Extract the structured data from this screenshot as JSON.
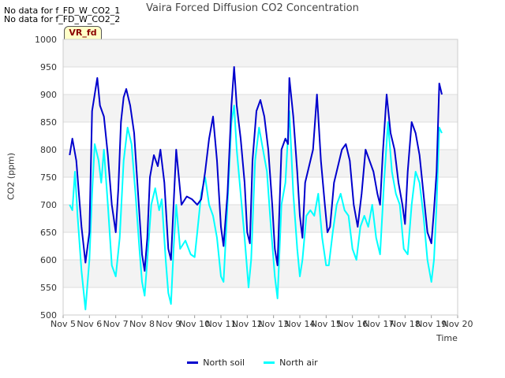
{
  "notes": [
    "No data for f_FD_W_CO2_1",
    "No data for f_FD_W_CO2_2"
  ],
  "badge": "VR_fd",
  "chart_data": {
    "type": "line",
    "title": "Vaira Forced Diffusion CO2 Concentration",
    "xlabel": "Time",
    "ylabel": "CO2 (ppm)",
    "ylim": [
      500,
      1000
    ],
    "yticks": [
      500,
      550,
      600,
      650,
      700,
      750,
      800,
      850,
      900,
      950,
      1000
    ],
    "xlim": [
      5,
      20
    ],
    "xticks": [
      5,
      6,
      7,
      8,
      9,
      10,
      11,
      12,
      13,
      14,
      15,
      16,
      17,
      18,
      19,
      20
    ],
    "xtick_labels": [
      "Nov 5",
      "Nov 6",
      "Nov 7",
      "Nov 8",
      "Nov 9",
      "Nov 10",
      "Nov 11",
      "Nov 12",
      "Nov 13",
      "Nov 14",
      "Nov 15",
      "Nov 16",
      "Nov 17",
      "Nov 18",
      "Nov 19",
      "Nov 20"
    ],
    "grid": true,
    "legend_position": "bottom-center",
    "series": [
      {
        "name": "North soil",
        "color": "#0000cd",
        "points": [
          [
            5.25,
            790
          ],
          [
            5.35,
            820
          ],
          [
            5.5,
            780
          ],
          [
            5.7,
            660
          ],
          [
            5.85,
            595
          ],
          [
            6.0,
            650
          ],
          [
            6.1,
            870
          ],
          [
            6.2,
            900
          ],
          [
            6.3,
            930
          ],
          [
            6.4,
            880
          ],
          [
            6.55,
            860
          ],
          [
            6.7,
            790
          ],
          [
            6.85,
            700
          ],
          [
            7.0,
            650
          ],
          [
            7.1,
            730
          ],
          [
            7.2,
            850
          ],
          [
            7.3,
            895
          ],
          [
            7.4,
            910
          ],
          [
            7.55,
            880
          ],
          [
            7.7,
            830
          ],
          [
            7.85,
            720
          ],
          [
            8.0,
            610
          ],
          [
            8.1,
            580
          ],
          [
            8.2,
            640
          ],
          [
            8.3,
            750
          ],
          [
            8.45,
            790
          ],
          [
            8.6,
            770
          ],
          [
            8.7,
            800
          ],
          [
            8.85,
            740
          ],
          [
            9.0,
            620
          ],
          [
            9.1,
            600
          ],
          [
            9.2,
            700
          ],
          [
            9.3,
            800
          ],
          [
            9.5,
            700
          ],
          [
            9.7,
            715
          ],
          [
            9.9,
            710
          ],
          [
            10.1,
            700
          ],
          [
            10.25,
            710
          ],
          [
            10.4,
            760
          ],
          [
            10.55,
            820
          ],
          [
            10.7,
            860
          ],
          [
            10.85,
            780
          ],
          [
            11.0,
            660
          ],
          [
            11.1,
            625
          ],
          [
            11.25,
            720
          ],
          [
            11.4,
            880
          ],
          [
            11.5,
            950
          ],
          [
            11.6,
            880
          ],
          [
            11.75,
            820
          ],
          [
            11.9,
            740
          ],
          [
            12.0,
            650
          ],
          [
            12.1,
            630
          ],
          [
            12.2,
            780
          ],
          [
            12.35,
            870
          ],
          [
            12.5,
            890
          ],
          [
            12.65,
            860
          ],
          [
            12.8,
            800
          ],
          [
            12.95,
            700
          ],
          [
            13.05,
            620
          ],
          [
            13.15,
            590
          ],
          [
            13.3,
            800
          ],
          [
            13.45,
            820
          ],
          [
            13.55,
            810
          ],
          [
            13.6,
            930
          ],
          [
            13.75,
            860
          ],
          [
            13.9,
            760
          ],
          [
            14.0,
            680
          ],
          [
            14.1,
            640
          ],
          [
            14.2,
            740
          ],
          [
            14.35,
            770
          ],
          [
            14.5,
            800
          ],
          [
            14.65,
            900
          ],
          [
            14.8,
            780
          ],
          [
            14.95,
            700
          ],
          [
            15.05,
            650
          ],
          [
            15.15,
            660
          ],
          [
            15.3,
            740
          ],
          [
            15.45,
            770
          ],
          [
            15.6,
            800
          ],
          [
            15.75,
            810
          ],
          [
            15.9,
            780
          ],
          [
            16.05,
            700
          ],
          [
            16.2,
            660
          ],
          [
            16.35,
            720
          ],
          [
            16.5,
            800
          ],
          [
            16.65,
            780
          ],
          [
            16.8,
            760
          ],
          [
            16.95,
            720
          ],
          [
            17.05,
            700
          ],
          [
            17.15,
            790
          ],
          [
            17.3,
            900
          ],
          [
            17.45,
            830
          ],
          [
            17.6,
            800
          ],
          [
            17.75,
            740
          ],
          [
            17.9,
            700
          ],
          [
            18.0,
            665
          ],
          [
            18.1,
            760
          ],
          [
            18.25,
            850
          ],
          [
            18.4,
            830
          ],
          [
            18.55,
            790
          ],
          [
            18.7,
            720
          ],
          [
            18.85,
            650
          ],
          [
            19.0,
            630
          ],
          [
            19.1,
            690
          ],
          [
            19.2,
            760
          ],
          [
            19.3,
            920
          ],
          [
            19.4,
            900
          ]
        ]
      },
      {
        "name": "North air",
        "color": "#00ffff",
        "points": [
          [
            5.25,
            700
          ],
          [
            5.35,
            690
          ],
          [
            5.45,
            760
          ],
          [
            5.55,
            680
          ],
          [
            5.7,
            580
          ],
          [
            5.85,
            510
          ],
          [
            6.0,
            600
          ],
          [
            6.1,
            720
          ],
          [
            6.2,
            810
          ],
          [
            6.35,
            780
          ],
          [
            6.45,
            740
          ],
          [
            6.55,
            800
          ],
          [
            6.7,
            700
          ],
          [
            6.85,
            590
          ],
          [
            7.0,
            570
          ],
          [
            7.15,
            640
          ],
          [
            7.3,
            780
          ],
          [
            7.45,
            840
          ],
          [
            7.6,
            810
          ],
          [
            7.75,
            720
          ],
          [
            7.9,
            620
          ],
          [
            8.0,
            560
          ],
          [
            8.1,
            535
          ],
          [
            8.2,
            600
          ],
          [
            8.35,
            700
          ],
          [
            8.5,
            730
          ],
          [
            8.65,
            690
          ],
          [
            8.75,
            710
          ],
          [
            8.9,
            600
          ],
          [
            9.0,
            540
          ],
          [
            9.1,
            520
          ],
          [
            9.2,
            620
          ],
          [
            9.3,
            700
          ],
          [
            9.45,
            620
          ],
          [
            9.65,
            635
          ],
          [
            9.85,
            610
          ],
          [
            10.0,
            605
          ],
          [
            10.1,
            650
          ],
          [
            10.25,
            720
          ],
          [
            10.4,
            750
          ],
          [
            10.55,
            700
          ],
          [
            10.7,
            680
          ],
          [
            10.85,
            640
          ],
          [
            11.0,
            570
          ],
          [
            11.1,
            560
          ],
          [
            11.25,
            700
          ],
          [
            11.4,
            850
          ],
          [
            11.5,
            880
          ],
          [
            11.6,
            800
          ],
          [
            11.75,
            720
          ],
          [
            11.9,
            640
          ],
          [
            12.05,
            550
          ],
          [
            12.15,
            600
          ],
          [
            12.3,
            780
          ],
          [
            12.45,
            840
          ],
          [
            12.6,
            800
          ],
          [
            12.75,
            760
          ],
          [
            12.9,
            660
          ],
          [
            13.05,
            570
          ],
          [
            13.15,
            530
          ],
          [
            13.3,
            700
          ],
          [
            13.45,
            740
          ],
          [
            13.6,
            870
          ],
          [
            13.75,
            720
          ],
          [
            13.9,
            620
          ],
          [
            14.0,
            570
          ],
          [
            14.1,
            600
          ],
          [
            14.25,
            680
          ],
          [
            14.4,
            690
          ],
          [
            14.55,
            680
          ],
          [
            14.7,
            720
          ],
          [
            14.85,
            640
          ],
          [
            15.0,
            590
          ],
          [
            15.1,
            590
          ],
          [
            15.25,
            650
          ],
          [
            15.4,
            700
          ],
          [
            15.55,
            720
          ],
          [
            15.7,
            690
          ],
          [
            15.85,
            680
          ],
          [
            16.0,
            620
          ],
          [
            16.15,
            600
          ],
          [
            16.3,
            660
          ],
          [
            16.45,
            680
          ],
          [
            16.6,
            660
          ],
          [
            16.75,
            700
          ],
          [
            16.9,
            640
          ],
          [
            17.05,
            610
          ],
          [
            17.2,
            740
          ],
          [
            17.35,
            850
          ],
          [
            17.5,
            760
          ],
          [
            17.65,
            720
          ],
          [
            17.8,
            700
          ],
          [
            17.95,
            620
          ],
          [
            18.1,
            610
          ],
          [
            18.25,
            700
          ],
          [
            18.4,
            760
          ],
          [
            18.55,
            740
          ],
          [
            18.7,
            680
          ],
          [
            18.85,
            600
          ],
          [
            19.0,
            560
          ],
          [
            19.1,
            600
          ],
          [
            19.2,
            700
          ],
          [
            19.3,
            840
          ],
          [
            19.4,
            830
          ]
        ]
      }
    ]
  }
}
